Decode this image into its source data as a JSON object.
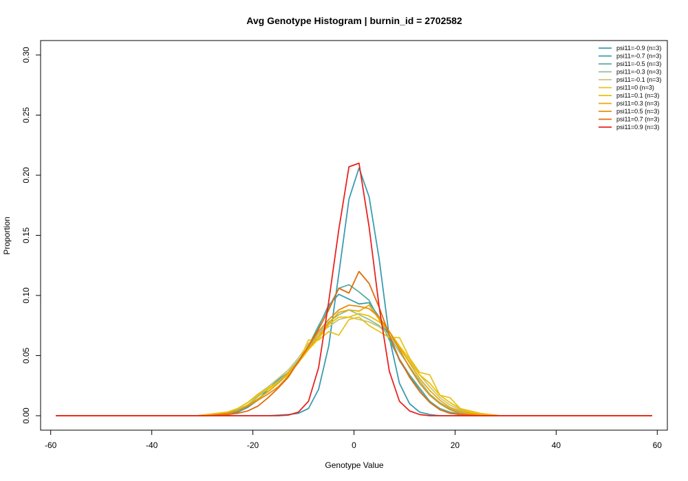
{
  "chart_data": {
    "type": "line",
    "title": "Avg Genotype Histogram | burnin_id = 2702582",
    "xlabel": "Genotype Value",
    "ylabel": "Proportion",
    "xlim": [
      -62,
      62
    ],
    "ylim": [
      -0.012,
      0.312
    ],
    "xticks": [
      -60,
      -40,
      -20,
      0,
      20,
      40,
      60
    ],
    "yticks": [
      0.0,
      0.05,
      0.1,
      0.15,
      0.2,
      0.25,
      0.3
    ],
    "ytick_labels": [
      "0.00",
      "0.05",
      "0.10",
      "0.15",
      "0.20",
      "0.25",
      "0.30"
    ],
    "legend_position": "top-right",
    "x": [
      -59,
      -57,
      -55,
      -53,
      -51,
      -49,
      -47,
      -45,
      -43,
      -41,
      -39,
      -37,
      -35,
      -33,
      -31,
      -29,
      -27,
      -25,
      -23,
      -21,
      -19,
      -17,
      -15,
      -13,
      -11,
      -9,
      -7,
      -5,
      -3,
      -1,
      1,
      3,
      5,
      7,
      9,
      11,
      13,
      15,
      17,
      19,
      21,
      23,
      25,
      27,
      29,
      31,
      33,
      35,
      37,
      39,
      41,
      43,
      45,
      47,
      49,
      51,
      53,
      55,
      57,
      59
    ],
    "series": [
      {
        "name": "psi11=-0.9 (n=3)",
        "color": "#3a9bb0",
        "values": [
          0,
          0,
          0,
          0,
          0,
          0,
          0,
          0,
          0,
          0,
          0,
          0,
          0,
          0,
          0,
          0,
          0,
          0,
          0,
          0,
          0,
          0,
          0.0005,
          0.001,
          0.002,
          0.006,
          0.022,
          0.058,
          0.118,
          0.18,
          0.206,
          0.182,
          0.13,
          0.065,
          0.027,
          0.01,
          0.003,
          0.001,
          0,
          0,
          0,
          0,
          0,
          0,
          0,
          0,
          0,
          0,
          0,
          0,
          0,
          0,
          0,
          0,
          0,
          0,
          0,
          0,
          0,
          0
        ]
      },
      {
        "name": "psi11=-0.7 (n=3)",
        "color": "#3a9bb0",
        "values": [
          0,
          0,
          0,
          0,
          0,
          0,
          0,
          0,
          0,
          0,
          0,
          0,
          0,
          0,
          0,
          0.0005,
          0.001,
          0.002,
          0.003,
          0.007,
          0.013,
          0.022,
          0.03,
          0.036,
          0.046,
          0.057,
          0.074,
          0.092,
          0.101,
          0.097,
          0.093,
          0.094,
          0.082,
          0.066,
          0.046,
          0.033,
          0.022,
          0.012,
          0.005,
          0.002,
          0.001,
          0.0005,
          0,
          0,
          0,
          0,
          0,
          0,
          0,
          0,
          0,
          0,
          0,
          0,
          0,
          0,
          0,
          0,
          0,
          0
        ]
      },
      {
        "name": "psi11=-0.5 (n=3)",
        "color": "#58ad9c",
        "values": [
          0,
          0,
          0,
          0,
          0,
          0,
          0,
          0,
          0,
          0,
          0,
          0,
          0,
          0,
          0,
          0.0005,
          0.001,
          0.002,
          0.004,
          0.008,
          0.014,
          0.02,
          0.027,
          0.035,
          0.045,
          0.058,
          0.075,
          0.09,
          0.106,
          0.109,
          0.103,
          0.096,
          0.08,
          0.063,
          0.047,
          0.034,
          0.023,
          0.012,
          0.006,
          0.003,
          0.0015,
          0.0005,
          0,
          0,
          0,
          0,
          0,
          0,
          0,
          0,
          0,
          0,
          0,
          0,
          0,
          0,
          0,
          0,
          0,
          0
        ]
      },
      {
        "name": "psi11=-0.3 (n=3)",
        "color": "#8fbf99",
        "values": [
          0,
          0,
          0,
          0,
          0,
          0,
          0,
          0,
          0,
          0,
          0,
          0,
          0,
          0,
          0,
          0.001,
          0.002,
          0.003,
          0.005,
          0.009,
          0.016,
          0.022,
          0.029,
          0.036,
          0.046,
          0.057,
          0.068,
          0.078,
          0.084,
          0.088,
          0.084,
          0.08,
          0.075,
          0.066,
          0.053,
          0.041,
          0.029,
          0.018,
          0.011,
          0.006,
          0.003,
          0.001,
          0.0005,
          0,
          0,
          0,
          0,
          0,
          0,
          0,
          0,
          0,
          0,
          0,
          0,
          0,
          0,
          0,
          0,
          0
        ]
      },
      {
        "name": "psi11=-0.1 (n=3)",
        "color": "#c8c47a",
        "values": [
          0,
          0,
          0,
          0,
          0,
          0,
          0,
          0,
          0,
          0,
          0,
          0,
          0,
          0,
          0,
          0.001,
          0.002,
          0.003,
          0.006,
          0.011,
          0.018,
          0.024,
          0.031,
          0.038,
          0.048,
          0.06,
          0.068,
          0.074,
          0.08,
          0.082,
          0.08,
          0.078,
          0.074,
          0.067,
          0.056,
          0.045,
          0.034,
          0.024,
          0.015,
          0.009,
          0.005,
          0.002,
          0.001,
          0,
          0,
          0,
          0,
          0,
          0,
          0,
          0,
          0,
          0,
          0,
          0,
          0,
          0,
          0,
          0,
          0
        ]
      },
      {
        "name": "psi11=0 (n=3)",
        "color": "#e8c21d",
        "values": [
          0,
          0,
          0,
          0,
          0,
          0,
          0,
          0,
          0,
          0,
          0,
          0,
          0,
          0,
          0,
          0.001,
          0.002,
          0.003,
          0.006,
          0.011,
          0.018,
          0.022,
          0.028,
          0.035,
          0.044,
          0.063,
          0.063,
          0.07,
          0.067,
          0.08,
          0.082,
          0.075,
          0.07,
          0.065,
          0.065,
          0.048,
          0.036,
          0.034,
          0.017,
          0.015,
          0.006,
          0.004,
          0.002,
          0.001,
          0,
          0,
          0,
          0,
          0,
          0,
          0,
          0,
          0,
          0,
          0,
          0,
          0,
          0,
          0,
          0
        ]
      },
      {
        "name": "psi11=0.1 (n=3)",
        "color": "#ebc000",
        "values": [
          0,
          0,
          0,
          0,
          0,
          0,
          0,
          0,
          0,
          0,
          0,
          0,
          0,
          0,
          0,
          0.001,
          0.002,
          0.003,
          0.006,
          0.011,
          0.017,
          0.023,
          0.028,
          0.034,
          0.044,
          0.055,
          0.064,
          0.076,
          0.082,
          0.082,
          0.085,
          0.083,
          0.078,
          0.07,
          0.058,
          0.047,
          0.034,
          0.027,
          0.017,
          0.011,
          0.006,
          0.003,
          0.001,
          0.0005,
          0,
          0,
          0,
          0,
          0,
          0,
          0,
          0,
          0,
          0,
          0,
          0,
          0,
          0,
          0,
          0
        ]
      },
      {
        "name": "psi11=0.3 (n=3)",
        "color": "#ebaa00",
        "values": [
          0,
          0,
          0,
          0,
          0,
          0,
          0,
          0,
          0,
          0,
          0,
          0,
          0,
          0,
          0,
          0,
          0.001,
          0.002,
          0.004,
          0.009,
          0.014,
          0.02,
          0.027,
          0.036,
          0.045,
          0.056,
          0.066,
          0.077,
          0.086,
          0.088,
          0.087,
          0.092,
          0.08,
          0.07,
          0.057,
          0.044,
          0.031,
          0.021,
          0.013,
          0.007,
          0.004,
          0.002,
          0.001,
          0,
          0,
          0,
          0,
          0,
          0,
          0,
          0,
          0,
          0,
          0,
          0,
          0,
          0,
          0,
          0,
          0
        ]
      },
      {
        "name": "psi11=0.5 (n=3)",
        "color": "#e58e0b",
        "values": [
          0,
          0,
          0,
          0,
          0,
          0,
          0,
          0,
          0,
          0,
          0,
          0,
          0,
          0,
          0,
          0,
          0.001,
          0.002,
          0.004,
          0.008,
          0.013,
          0.018,
          0.024,
          0.033,
          0.045,
          0.058,
          0.07,
          0.08,
          0.088,
          0.092,
          0.091,
          0.089,
          0.082,
          0.07,
          0.055,
          0.04,
          0.027,
          0.017,
          0.01,
          0.005,
          0.002,
          0.001,
          0,
          0,
          0,
          0,
          0,
          0,
          0,
          0,
          0,
          0,
          0,
          0,
          0,
          0,
          0,
          0,
          0,
          0
        ]
      },
      {
        "name": "psi11=0.7 (n=3)",
        "color": "#e26b0a",
        "values": [
          0,
          0,
          0,
          0,
          0,
          0,
          0,
          0,
          0,
          0,
          0,
          0,
          0,
          0,
          0,
          0,
          0.0005,
          0.001,
          0.002,
          0.004,
          0.008,
          0.015,
          0.023,
          0.032,
          0.045,
          0.058,
          0.072,
          0.088,
          0.106,
          0.102,
          0.12,
          0.11,
          0.09,
          0.067,
          0.047,
          0.032,
          0.02,
          0.011,
          0.005,
          0.002,
          0.001,
          0.0005,
          0,
          0,
          0,
          0,
          0,
          0,
          0,
          0,
          0,
          0,
          0,
          0,
          0,
          0,
          0,
          0,
          0,
          0
        ]
      },
      {
        "name": "psi11=0.9 (n=3)",
        "color": "#e8221f",
        "values": [
          0,
          0,
          0,
          0,
          0,
          0,
          0,
          0,
          0,
          0,
          0,
          0,
          0,
          0,
          0,
          0,
          0,
          0,
          0,
          0,
          0,
          0,
          0,
          0.0005,
          0.003,
          0.012,
          0.04,
          0.095,
          0.155,
          0.207,
          0.21,
          0.157,
          0.09,
          0.037,
          0.012,
          0.004,
          0.001,
          0,
          0,
          0,
          0,
          0,
          0,
          0,
          0,
          0,
          0,
          0,
          0,
          0,
          0,
          0,
          0,
          0,
          0,
          0,
          0,
          0,
          0,
          0
        ]
      }
    ]
  }
}
